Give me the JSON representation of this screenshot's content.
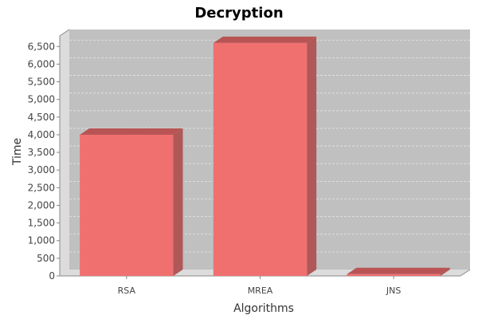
{
  "chart_data": {
    "type": "bar",
    "title": "Decryption",
    "xlabel": "Algorithms",
    "ylabel": "Time",
    "categories": [
      "RSA",
      "MREA",
      "JNS"
    ],
    "values": [
      4000,
      6600,
      50
    ],
    "ylim": [
      0,
      6800
    ],
    "yticks": [
      0,
      500,
      1000,
      1500,
      2000,
      2500,
      3000,
      3500,
      4000,
      4500,
      5000,
      5500,
      6000,
      6500
    ],
    "ytick_labels": [
      "0",
      "500",
      "1,000",
      "1,500",
      "2,000",
      "2,500",
      "3,000",
      "3,500",
      "4,000",
      "4,500",
      "5,000",
      "5,500",
      "6,000",
      "6,500"
    ],
    "grid": true,
    "legend": "none",
    "style": "3d-bar",
    "colors": {
      "bar_front": "#f07070",
      "bar_top": "#b85454",
      "bar_side": "#b05858",
      "plot_back": "#c0c0c0",
      "plot_wall": "#dcdcdc",
      "plot_floor": "#dcdcdc"
    }
  }
}
